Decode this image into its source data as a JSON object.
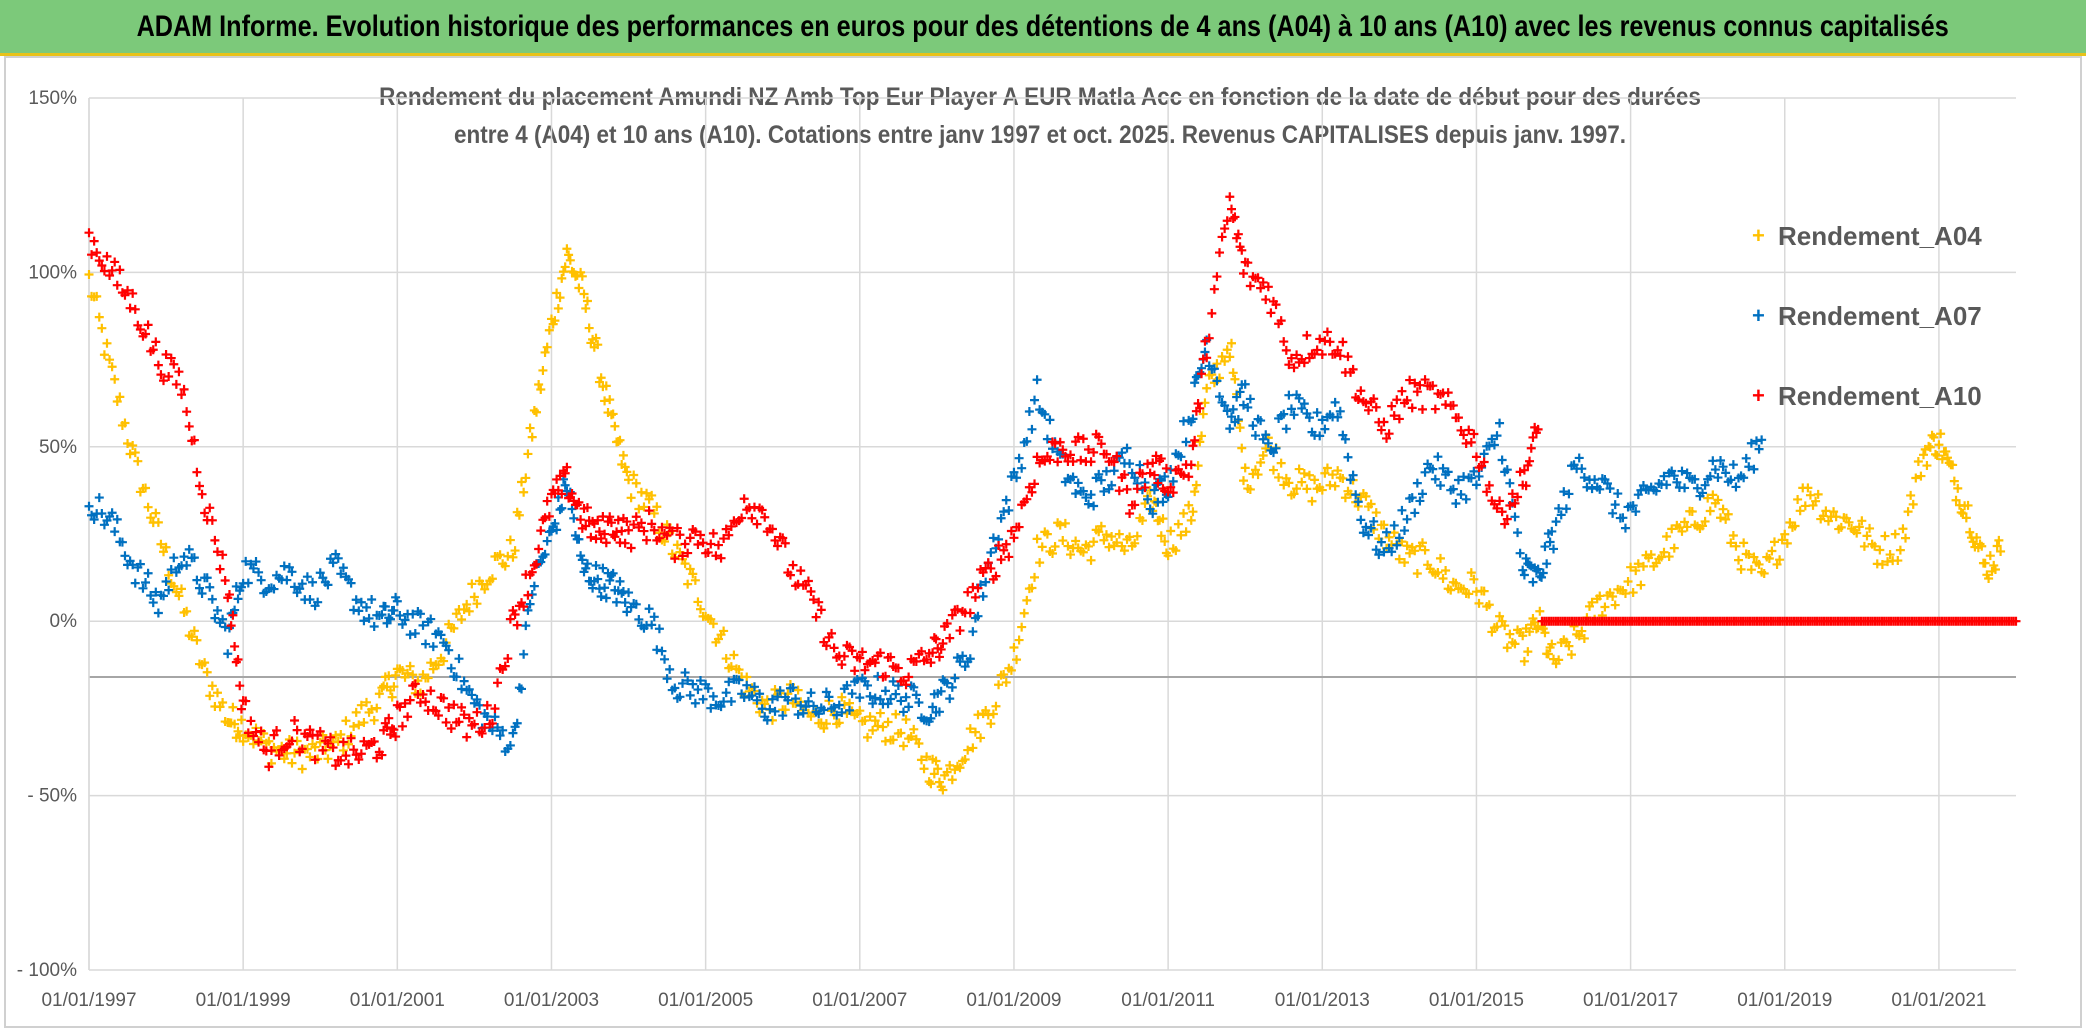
{
  "banner": {
    "title": "ADAM Informe. Evolution historique des performances en euros pour des détentions de 4 ans (A04) à 10 ans (A10) avec les revenus connus capitalisés"
  },
  "chart_data": {
    "type": "scatter",
    "title_line1": "Rendement du placement Amundi NZ Amb Top Eur Player A EUR Matla Acc en fonction de la date de début pour des durées",
    "title_line2": "entre 4 (A04) et 10 ans (A10). Cotations entre janv 1997 et oct. 2025. Revenus CAPITALISES depuis janv. 1997.",
    "xlabel": "",
    "ylabel": "",
    "xlim": [
      1997.0,
      2022.0
    ],
    "ylim": [
      -100,
      150
    ],
    "y_ticks": [
      150,
      100,
      50,
      0,
      -50,
      -100
    ],
    "y_tick_labels": [
      "150%",
      "100%",
      "50%",
      "0%",
      "- 50%",
      "- 100%"
    ],
    "x_ticks": [
      1997,
      1999,
      2001,
      2003,
      2005,
      2007,
      2009,
      2011,
      2013,
      2015,
      2017,
      2019,
      2021
    ],
    "x_tick_labels": [
      "01/01/1997",
      "01/01/1999",
      "01/01/2001",
      "01/01/2003",
      "01/01/2005",
      "01/01/2007",
      "01/01/2009",
      "01/01/2011",
      "01/01/2013",
      "01/01/2015",
      "01/01/2017",
      "01/01/2019",
      "01/01/2021"
    ],
    "reference_line_y": -16,
    "grid": true,
    "legend_position": "right",
    "marker": "+",
    "series": [
      {
        "name": "Rendement_A04",
        "color": "#ffc000",
        "x": [
          1997.0,
          1997.3,
          1997.6,
          1997.9,
          1998.2,
          1998.5,
          1998.8,
          1999.0,
          1999.3,
          1999.6,
          1999.9,
          2000.2,
          2000.5,
          2000.8,
          2001.0,
          2001.3,
          2001.6,
          2001.9,
          2002.2,
          2002.5,
          2002.75,
          2003.0,
          2003.2,
          2003.4,
          2003.6,
          2003.8,
          2004.0,
          2004.3,
          2004.6,
          2004.9,
          2005.2,
          2005.5,
          2005.8,
          2006.1,
          2006.4,
          2006.7,
          2007.0,
          2007.3,
          2007.6,
          2007.9,
          2008.1,
          2008.4,
          2008.7,
          2009.0,
          2009.3,
          2009.6,
          2009.9,
          2010.2,
          2010.5,
          2010.8,
          2011.0,
          2011.3,
          2011.5,
          2011.8,
          2012.0,
          2012.3,
          2012.6,
          2012.9,
          2013.2,
          2013.5,
          2013.8,
          2014.1,
          2014.4,
          2014.7,
          2015.0,
          2015.3,
          2015.6,
          2015.8,
          2016.0,
          2016.3,
          2016.6,
          2016.9,
          2017.2,
          2017.5,
          2017.8,
          2018.1,
          2018.4,
          2018.7,
          2019.0,
          2019.3,
          2019.6,
          2019.9,
          2020.2,
          2020.5,
          2020.8,
          2021.0,
          2021.2,
          2021.4,
          2021.6,
          2021.8
        ],
        "values": [
          98,
          70,
          45,
          25,
          5,
          -15,
          -28,
          -30,
          -36,
          -38,
          -38,
          -36,
          -28,
          -22,
          -15,
          -18,
          -8,
          5,
          15,
          20,
          55,
          85,
          105,
          95,
          75,
          55,
          40,
          32,
          20,
          8,
          -5,
          -18,
          -25,
          -22,
          -28,
          -25,
          -30,
          -30,
          -32,
          -42,
          -45,
          -35,
          -25,
          -10,
          20,
          25,
          20,
          25,
          20,
          35,
          22,
          30,
          65,
          80,
          40,
          50,
          40,
          38,
          42,
          35,
          25,
          18,
          18,
          10,
          10,
          -3,
          -8,
          0,
          -12,
          -5,
          5,
          10,
          15,
          22,
          28,
          35,
          20,
          12,
          25,
          38,
          30,
          28,
          20,
          22,
          48,
          52,
          40,
          30,
          15,
          20
        ]
      },
      {
        "name": "Rendement_A07",
        "color": "#0070c0",
        "x": [
          1997.0,
          1997.3,
          1997.6,
          1997.9,
          1998.2,
          1998.5,
          1998.8,
          1999.0,
          1999.3,
          1999.6,
          1999.9,
          2000.2,
          2000.5,
          2000.8,
          2001.0,
          2001.3,
          2001.6,
          2001.9,
          2002.2,
          2002.5,
          2002.75,
          2003.0,
          2003.2,
          2003.4,
          2003.6,
          2003.8,
          2004.0,
          2004.3,
          2004.6,
          2004.9,
          2005.2,
          2005.5,
          2005.8,
          2006.1,
          2006.4,
          2006.7,
          2007.0,
          2007.3,
          2007.6,
          2007.9,
          2008.1,
          2008.4,
          2008.7,
          2009.0,
          2009.3,
          2009.6,
          2009.9,
          2010.2,
          2010.5,
          2010.8,
          2011.0,
          2011.3,
          2011.5,
          2011.8,
          2012.0,
          2012.3,
          2012.6,
          2012.9,
          2013.2,
          2013.5,
          2013.8,
          2014.1,
          2014.4,
          2014.7,
          2015.0,
          2015.3,
          2015.6,
          2015.8,
          2016.0,
          2016.3,
          2016.6,
          2016.9,
          2017.2,
          2017.5,
          2017.8,
          2018.1,
          2018.4,
          2018.7
        ],
        "values": [
          35,
          28,
          15,
          5,
          20,
          10,
          -5,
          15,
          12,
          14,
          8,
          15,
          5,
          0,
          3,
          -2,
          -5,
          -20,
          -30,
          -35,
          10,
          25,
          40,
          15,
          12,
          10,
          5,
          0,
          -18,
          -20,
          -22,
          -20,
          -25,
          -22,
          -25,
          -24,
          -20,
          -20,
          -22,
          -25,
          -20,
          -10,
          20,
          40,
          65,
          45,
          35,
          40,
          48,
          35,
          40,
          60,
          80,
          58,
          65,
          48,
          62,
          55,
          62,
          30,
          20,
          30,
          45,
          38,
          40,
          55,
          15,
          12,
          25,
          45,
          40,
          30,
          35,
          42,
          38,
          45,
          40,
          52
        ]
      },
      {
        "name": "Rendement_A10",
        "color": "#ff0000",
        "x": [
          1997.0,
          1997.3,
          1997.6,
          1997.9,
          1998.2,
          1998.5,
          1998.8,
          1999.0,
          1999.3,
          1999.6,
          1999.9,
          2000.2,
          2000.5,
          2000.8,
          2001.0,
          2001.3,
          2001.6,
          2001.9,
          2002.2,
          2002.5,
          2002.75,
          2003.0,
          2003.2,
          2003.4,
          2003.6,
          2003.8,
          2004.0,
          2004.3,
          2004.6,
          2004.9,
          2005.2,
          2005.5,
          2005.8,
          2006.1,
          2006.4,
          2006.7,
          2007.0,
          2007.3,
          2007.6,
          2007.9,
          2008.1,
          2008.4,
          2008.7,
          2009.0,
          2009.3,
          2009.6,
          2009.9,
          2010.2,
          2010.5,
          2010.8,
          2011.0,
          2011.3,
          2011.5,
          2011.8,
          2012.0,
          2012.3,
          2012.6,
          2012.9,
          2013.2,
          2013.5,
          2013.8,
          2014.1,
          2014.4,
          2014.7,
          2015.0,
          2015.3,
          2015.6,
          2015.8
        ],
        "values": [
          110,
          100,
          90,
          75,
          68,
          35,
          10,
          -25,
          -38,
          -32,
          -35,
          -38,
          -38,
          -35,
          -28,
          -20,
          -25,
          -30,
          -28,
          0,
          15,
          35,
          40,
          30,
          25,
          28,
          25,
          28,
          22,
          25,
          20,
          35,
          30,
          15,
          5,
          -10,
          -12,
          -12,
          -15,
          -10,
          -5,
          5,
          15,
          25,
          45,
          50,
          48,
          50,
          35,
          45,
          40,
          45,
          80,
          120,
          100,
          95,
          75,
          80,
          80,
          65,
          55,
          65,
          65,
          60,
          50,
          30,
          40,
          55
        ]
      },
      {
        "name": "Rendement_A10 (zero line)",
        "color": "#ff0000",
        "x_range": [
          2015.85,
          2022.0
        ],
        "value": 0
      }
    ]
  }
}
